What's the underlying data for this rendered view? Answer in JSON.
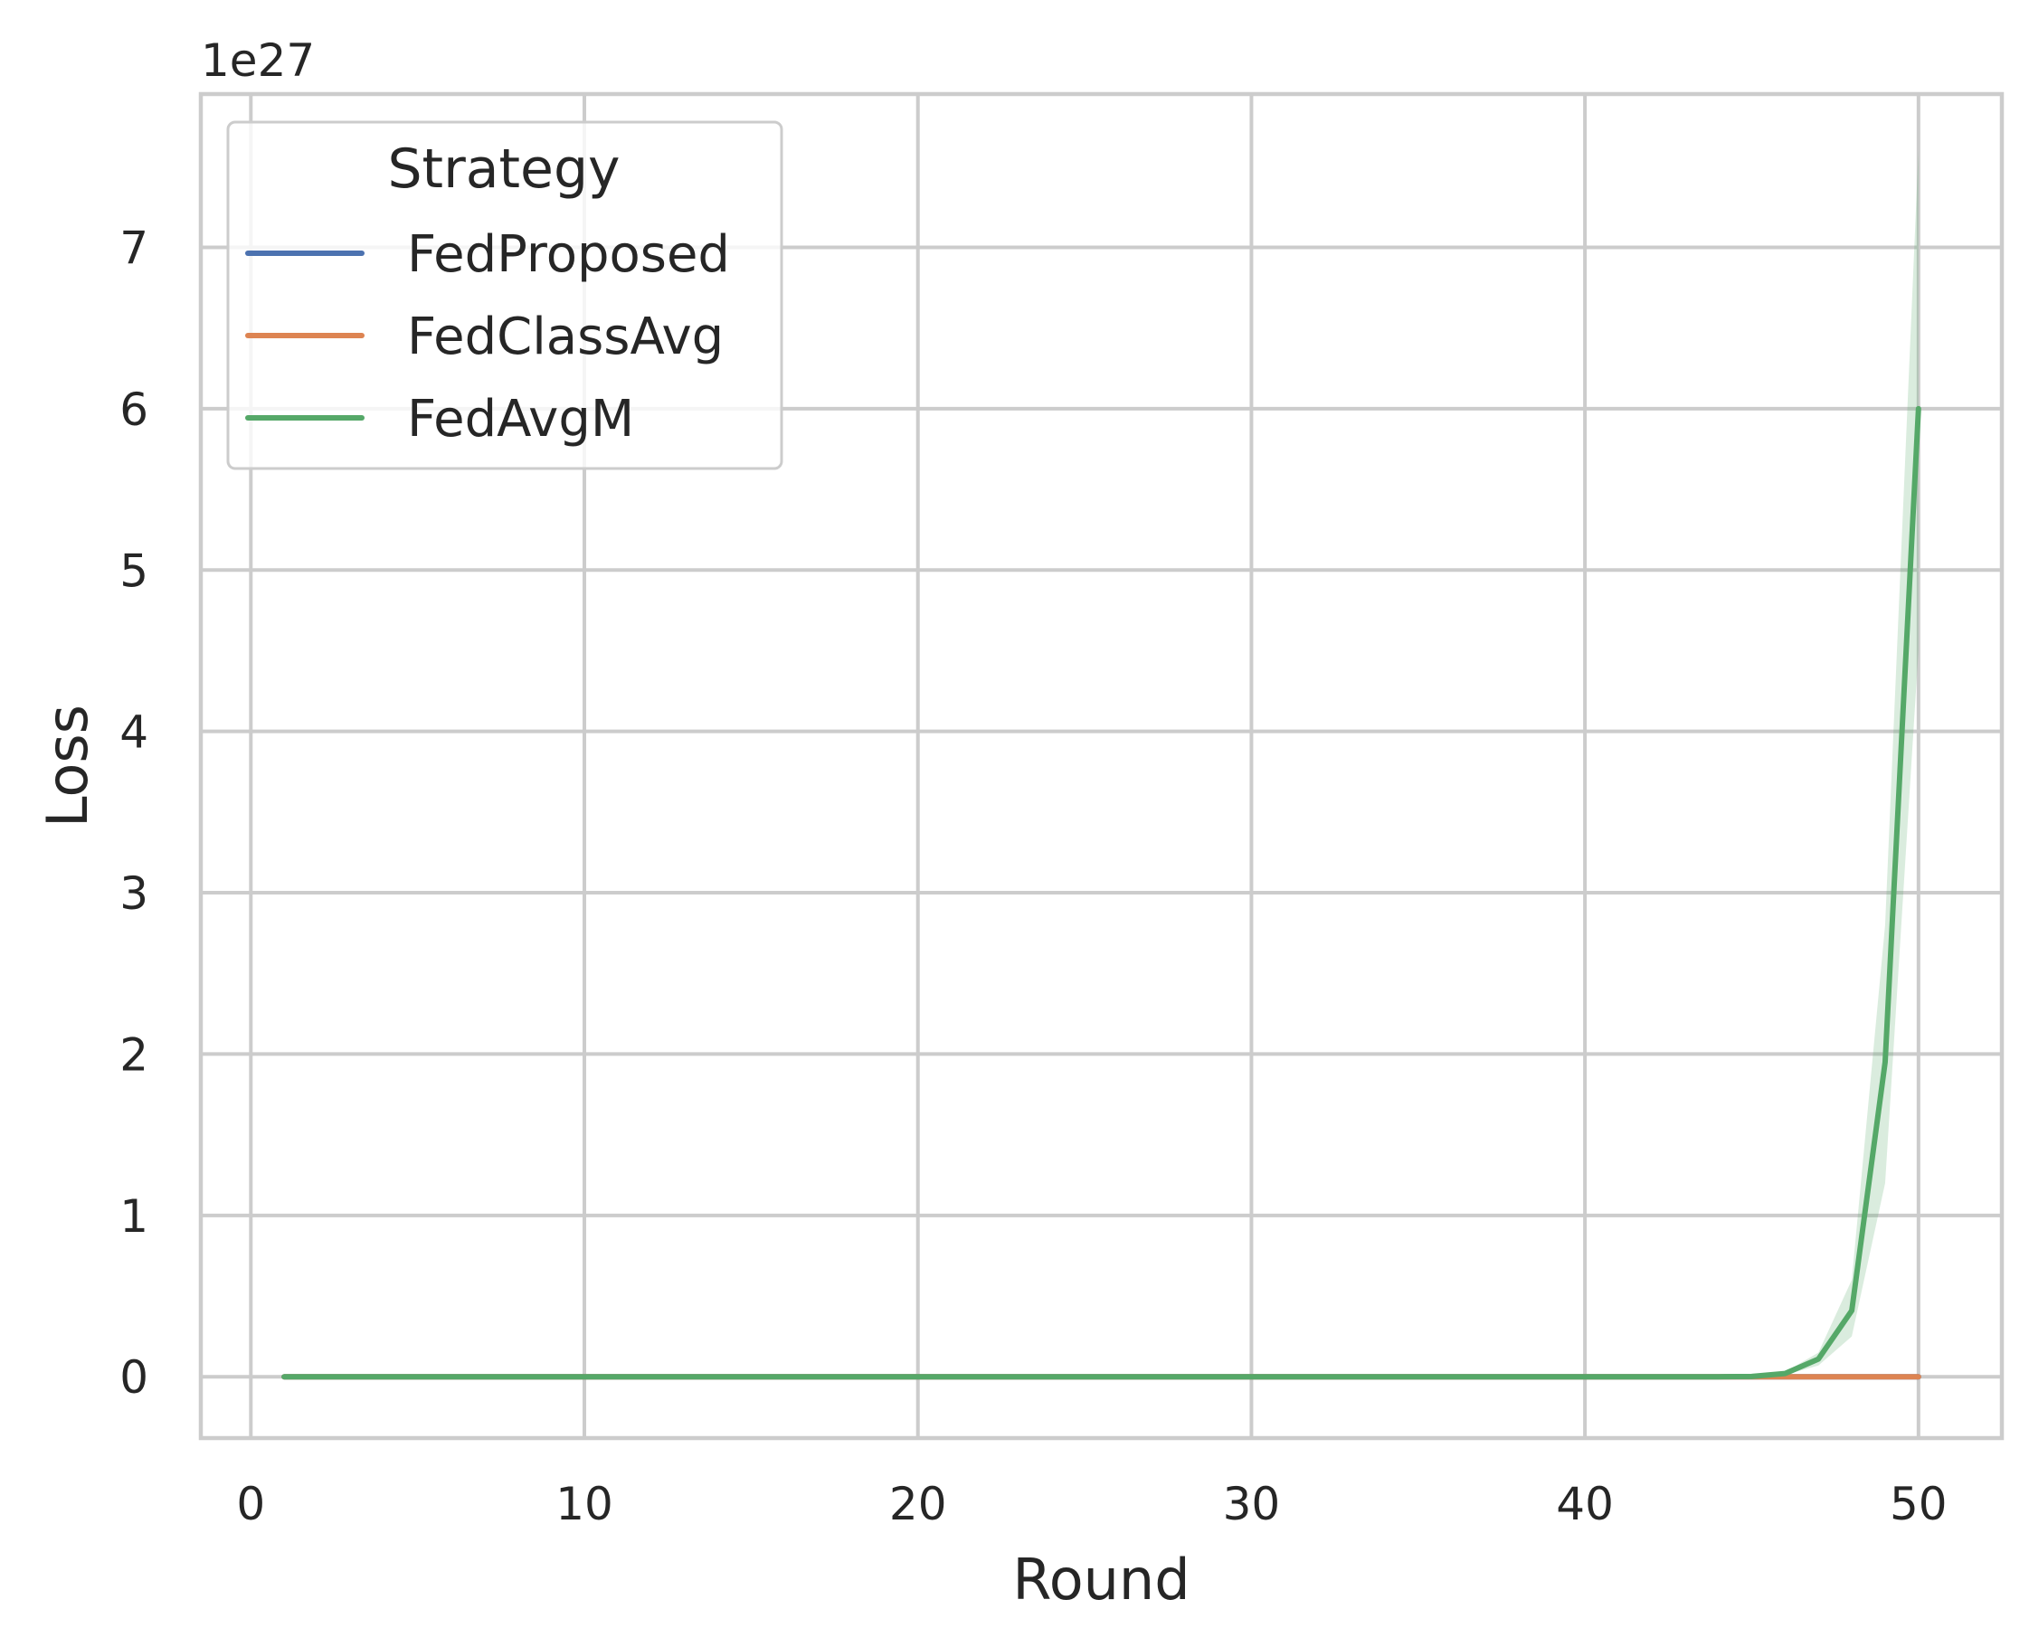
{
  "chart_data": {
    "type": "line",
    "title": "",
    "xlabel": "Round",
    "ylabel": "Loss",
    "y_offset_label": "1e27",
    "xlim": [
      -1.5,
      52.5
    ],
    "ylim": [
      -0.38,
      7.95
    ],
    "x_ticks": [
      0,
      10,
      20,
      30,
      40,
      50
    ],
    "y_ticks": [
      0,
      1,
      2,
      3,
      4,
      5,
      6,
      7
    ],
    "grid": true,
    "legend": {
      "title": "Strategy",
      "placement": "top-left"
    },
    "x": [
      1,
      2,
      3,
      4,
      5,
      6,
      7,
      8,
      9,
      10,
      11,
      12,
      13,
      14,
      15,
      16,
      17,
      18,
      19,
      20,
      21,
      22,
      23,
      24,
      25,
      26,
      27,
      28,
      29,
      30,
      31,
      32,
      33,
      34,
      35,
      36,
      37,
      38,
      39,
      40,
      41,
      42,
      43,
      44,
      45,
      46,
      47,
      48,
      49,
      50
    ],
    "series": [
      {
        "name": "FedProposed",
        "color": "#4c72b0",
        "values": [
          0,
          0,
          0,
          0,
          0,
          0,
          0,
          0,
          0,
          0,
          0,
          0,
          0,
          0,
          0,
          0,
          0,
          0,
          0,
          0,
          0,
          0,
          0,
          0,
          0,
          0,
          0,
          0,
          0,
          0,
          0,
          0,
          0,
          0,
          0,
          0,
          0,
          0,
          0,
          0,
          0,
          0,
          0,
          0,
          0,
          0,
          0,
          0,
          0,
          0
        ]
      },
      {
        "name": "FedClassAvg",
        "color": "#dd8452",
        "values": [
          0,
          0,
          0,
          0,
          0,
          0,
          0,
          0,
          0,
          0,
          0,
          0,
          0,
          0,
          0,
          0,
          0,
          0,
          0,
          0,
          0,
          0,
          0,
          0,
          0,
          0,
          0,
          0,
          0,
          0,
          0,
          0,
          0,
          0,
          0,
          0,
          0,
          0,
          0,
          0,
          0,
          0,
          0,
          0,
          0,
          0,
          0,
          0,
          0,
          0
        ]
      },
      {
        "name": "FedAvgM",
        "color": "#55a868",
        "values": [
          0,
          0,
          0,
          0,
          0,
          0,
          0,
          0,
          0,
          0,
          0,
          0,
          0,
          0,
          0,
          0,
          0,
          0,
          0,
          0,
          0,
          0,
          0,
          0,
          0,
          0,
          0,
          0,
          0,
          0,
          0,
          0,
          0,
          0,
          0,
          0,
          0,
          0,
          0,
          0,
          0,
          0,
          0,
          0,
          0.002,
          0.02,
          0.11,
          0.41,
          1.95,
          6.0
        ],
        "ci_lower": [
          0,
          0,
          0,
          0,
          0,
          0,
          0,
          0,
          0,
          0,
          0,
          0,
          0,
          0,
          0,
          0,
          0,
          0,
          0,
          0,
          0,
          0,
          0,
          0,
          0,
          0,
          0,
          0,
          0,
          0,
          0,
          0,
          0,
          0,
          0,
          0,
          0,
          0,
          0,
          0,
          0,
          0,
          0,
          0,
          0.001,
          0.012,
          0.07,
          0.25,
          1.2,
          4.5
        ],
        "ci_upper": [
          0,
          0,
          0,
          0,
          0,
          0,
          0,
          0,
          0,
          0,
          0,
          0,
          0,
          0,
          0,
          0,
          0,
          0,
          0,
          0,
          0,
          0,
          0,
          0,
          0,
          0,
          0,
          0,
          0,
          0,
          0,
          0,
          0,
          0,
          0,
          0,
          0,
          0,
          0,
          0,
          0,
          0,
          0,
          0,
          0.003,
          0.03,
          0.15,
          0.6,
          2.8,
          7.6
        ]
      }
    ]
  }
}
